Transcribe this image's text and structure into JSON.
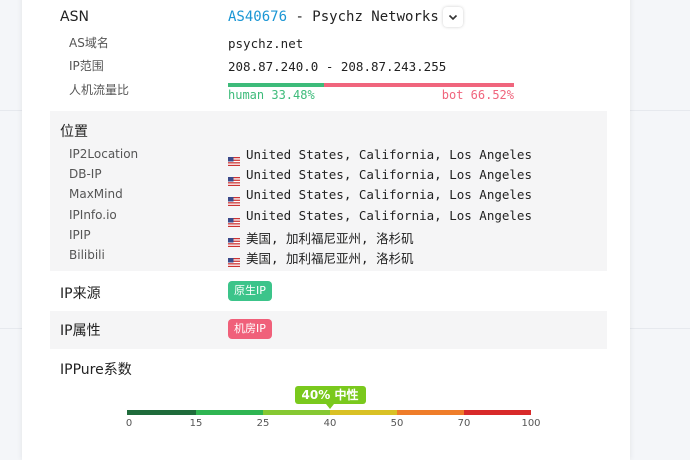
{
  "asn": {
    "label": "ASN",
    "number": "AS40676",
    "name": "- Psychz Networks"
  },
  "rows": [
    {
      "label": "AS域名",
      "value": "psychz.net"
    },
    {
      "label": "IP范围",
      "value": "208.87.240.0 - 208.87.243.255"
    }
  ],
  "traffic_ratio": {
    "label": "人机流量比",
    "values": [
      33.48,
      66.52
    ],
    "value_labels": [
      "human 33.48%",
      "bot 66.52%"
    ],
    "colors": [
      "#3dbb7a",
      "#f0657d"
    ]
  },
  "location": {
    "title": "位置",
    "rows": [
      {
        "source": "IP2Location",
        "value": "United States, California, Los Angeles"
      },
      {
        "source": "DB-IP",
        "value": "United States, California, Los Angeles"
      },
      {
        "source": "MaxMind",
        "value": "United States, California, Los Angeles"
      },
      {
        "source": "IPInfo.io",
        "value": "United States, California, Los Angeles"
      },
      {
        "source": "IPIP",
        "value": "美国, 加利福尼亚州, 洛杉矶"
      },
      {
        "source": "Bilibili",
        "value": "美国, 加利福尼亚州, 洛杉矶"
      }
    ]
  },
  "ip_source": {
    "label": "IP来源",
    "badge": "原生IP",
    "color": "#3cc48a"
  },
  "ip_type": {
    "label": "IP属性",
    "badge": "机房IP",
    "color": "#f0607a"
  },
  "ippure": {
    "label": "IPPure系数",
    "score": 40,
    "score_label": "40% 中性",
    "badge_color": "#7ac91d",
    "xlim": [
      0,
      100
    ],
    "xticks": [
      0,
      15,
      25,
      40,
      50,
      70,
      100
    ],
    "segment_colors": [
      "#1f6b3b",
      "#2fb552",
      "#86c832",
      "#d9c125",
      "#ef7d2a",
      "#d82a2a"
    ]
  }
}
